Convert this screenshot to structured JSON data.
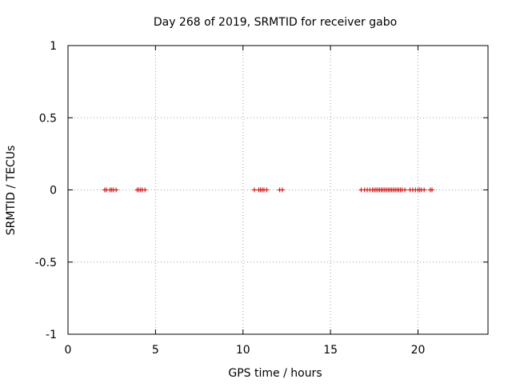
{
  "chart_data": {
    "type": "scatter",
    "title": "Day 268 of 2019, SRMTID for receiver gabo",
    "xlabel": "GPS time / hours",
    "ylabel": "SRMTID / TECUs",
    "xlim": [
      0,
      24
    ],
    "ylim": [
      -1,
      1
    ],
    "xticks": [
      0,
      5,
      10,
      15,
      20
    ],
    "xtick_labels": [
      "0",
      "5",
      "10",
      "15",
      "20"
    ],
    "yticks": [
      -1,
      -0.5,
      0,
      0.5,
      1
    ],
    "ytick_labels": [
      "-1",
      "-0.5",
      "0",
      "0.5",
      "1"
    ],
    "grid": true,
    "marker": "+",
    "series": [
      {
        "name": "SRMTID",
        "color": "#cc0000",
        "x": [
          2.1,
          2.2,
          2.4,
          2.5,
          2.6,
          2.75,
          3.95,
          4.05,
          4.15,
          4.25,
          4.4,
          10.65,
          10.9,
          11.0,
          11.1,
          11.2,
          11.35,
          12.1,
          12.25,
          16.75,
          16.95,
          17.1,
          17.25,
          17.4,
          17.5,
          17.6,
          17.7,
          17.8,
          17.9,
          18.0,
          18.1,
          18.2,
          18.3,
          18.4,
          18.5,
          18.6,
          18.7,
          18.8,
          18.9,
          19.0,
          19.1,
          19.25,
          19.55,
          19.7,
          19.85,
          20.0,
          20.1,
          20.2,
          20.35,
          20.7,
          20.8
        ],
        "y": [
          0,
          0,
          0,
          0,
          0,
          0,
          0,
          0,
          0,
          0,
          0,
          0,
          0,
          0,
          0,
          0,
          0,
          0,
          0,
          0,
          0,
          0,
          0,
          0,
          0,
          0,
          0,
          0,
          0,
          0,
          0,
          0,
          0,
          0,
          0,
          0,
          0,
          0,
          0,
          0,
          0,
          0,
          0,
          0,
          0,
          0,
          0,
          0,
          0,
          0,
          0
        ]
      }
    ]
  }
}
